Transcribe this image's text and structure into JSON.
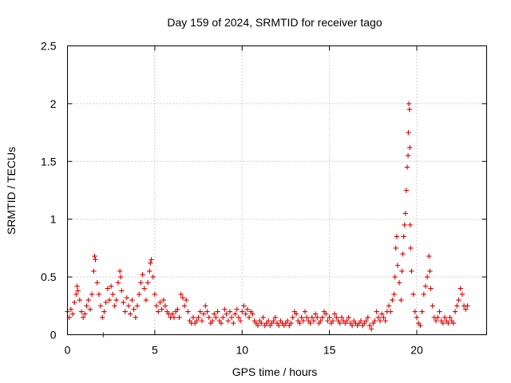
{
  "chart_data": {
    "type": "scatter",
    "title": "Day 159 of 2024, SRMTID for receiver tago",
    "xlabel": "GPS time / hours",
    "ylabel": "SRMTID / TECUs",
    "xlim": [
      0,
      24
    ],
    "ylim": [
      0,
      2.5
    ],
    "xticks": [
      0,
      5,
      10,
      15,
      20
    ],
    "xtick_labels": [
      "0",
      "5",
      "10",
      "15",
      "20"
    ],
    "yticks": [
      0,
      0.5,
      1,
      1.5,
      2,
      2.5
    ],
    "ytick_labels": [
      "0",
      "0.5",
      "1",
      "1.5",
      "2",
      "2.5"
    ],
    "grid": true,
    "marker": "plus",
    "color": "#e00000",
    "series": [
      {
        "name": "SRMTID",
        "points": [
          [
            0.0,
            0.2
          ],
          [
            0.1,
            0.15
          ],
          [
            0.2,
            0.22
          ],
          [
            0.3,
            0.18
          ],
          [
            0.4,
            0.28
          ],
          [
            0.5,
            0.35
          ],
          [
            0.55,
            0.42
          ],
          [
            0.6,
            0.38
          ],
          [
            0.7,
            0.3
          ],
          [
            0.8,
            0.2
          ],
          [
            0.9,
            0.15
          ],
          [
            1.0,
            0.18
          ],
          [
            1.1,
            0.25
          ],
          [
            1.2,
            0.3
          ],
          [
            1.3,
            0.22
          ],
          [
            1.4,
            0.35
          ],
          [
            1.5,
            0.55
          ],
          [
            1.55,
            0.68
          ],
          [
            1.6,
            0.65
          ],
          [
            1.7,
            0.45
          ],
          [
            1.8,
            0.35
          ],
          [
            1.9,
            0.25
          ],
          [
            2.0,
            0.15
          ],
          [
            2.05,
            0.0
          ],
          [
            2.1,
            0.2
          ],
          [
            2.2,
            0.28
          ],
          [
            2.3,
            0.4
          ],
          [
            2.4,
            0.3
          ],
          [
            2.5,
            0.42
          ],
          [
            2.6,
            0.35
          ],
          [
            2.7,
            0.25
          ],
          [
            2.8,
            0.3
          ],
          [
            2.9,
            0.45
          ],
          [
            3.0,
            0.55
          ],
          [
            3.05,
            0.5
          ],
          [
            3.1,
            0.38
          ],
          [
            3.2,
            0.28
          ],
          [
            3.3,
            0.2
          ],
          [
            3.4,
            0.32
          ],
          [
            3.5,
            0.25
          ],
          [
            3.6,
            0.18
          ],
          [
            3.7,
            0.3
          ],
          [
            3.8,
            0.22
          ],
          [
            3.9,
            0.15
          ],
          [
            4.0,
            0.25
          ],
          [
            4.1,
            0.35
          ],
          [
            4.2,
            0.45
          ],
          [
            4.3,
            0.52
          ],
          [
            4.4,
            0.4
          ],
          [
            4.5,
            0.3
          ],
          [
            4.6,
            0.45
          ],
          [
            4.7,
            0.55
          ],
          [
            4.75,
            0.62
          ],
          [
            4.8,
            0.65
          ],
          [
            4.9,
            0.5
          ],
          [
            5.0,
            0.35
          ],
          [
            5.1,
            0.25
          ],
          [
            5.2,
            0.2
          ],
          [
            5.3,
            0.28
          ],
          [
            5.4,
            0.22
          ],
          [
            5.5,
            0.3
          ],
          [
            5.6,
            0.25
          ],
          [
            5.7,
            0.2
          ],
          [
            5.8,
            0.18
          ],
          [
            5.9,
            0.15
          ],
          [
            6.0,
            0.18
          ],
          [
            6.1,
            0.15
          ],
          [
            6.2,
            0.2
          ],
          [
            6.3,
            0.22
          ],
          [
            6.4,
            0.15
          ],
          [
            6.5,
            0.35
          ],
          [
            6.6,
            0.32
          ],
          [
            6.7,
            0.25
          ],
          [
            6.8,
            0.3
          ],
          [
            6.9,
            0.2
          ],
          [
            7.0,
            0.12
          ],
          [
            7.1,
            0.1
          ],
          [
            7.2,
            0.15
          ],
          [
            7.3,
            0.1
          ],
          [
            7.4,
            0.12
          ],
          [
            7.5,
            0.15
          ],
          [
            7.6,
            0.2
          ],
          [
            7.7,
            0.12
          ],
          [
            7.8,
            0.18
          ],
          [
            7.9,
            0.25
          ],
          [
            8.0,
            0.2
          ],
          [
            8.1,
            0.15
          ],
          [
            8.2,
            0.1
          ],
          [
            8.3,
            0.12
          ],
          [
            8.4,
            0.18
          ],
          [
            8.5,
            0.15
          ],
          [
            8.6,
            0.2
          ],
          [
            8.7,
            0.12
          ],
          [
            8.8,
            0.1
          ],
          [
            8.9,
            0.15
          ],
          [
            9.0,
            0.22
          ],
          [
            9.1,
            0.18
          ],
          [
            9.2,
            0.12
          ],
          [
            9.3,
            0.2
          ],
          [
            9.4,
            0.15
          ],
          [
            9.5,
            0.1
          ],
          [
            9.6,
            0.18
          ],
          [
            9.7,
            0.22
          ],
          [
            9.8,
            0.15
          ],
          [
            9.9,
            0.12
          ],
          [
            10.0,
            0.2
          ],
          [
            10.1,
            0.25
          ],
          [
            10.2,
            0.18
          ],
          [
            10.3,
            0.22
          ],
          [
            10.4,
            0.15
          ],
          [
            10.5,
            0.2
          ],
          [
            10.6,
            0.18
          ],
          [
            10.7,
            0.12
          ],
          [
            10.8,
            0.1
          ],
          [
            10.9,
            0.08
          ],
          [
            11.0,
            0.12
          ],
          [
            11.1,
            0.1
          ],
          [
            11.2,
            0.15
          ],
          [
            11.3,
            0.08
          ],
          [
            11.4,
            0.1
          ],
          [
            11.5,
            0.12
          ],
          [
            11.6,
            0.08
          ],
          [
            11.7,
            0.1
          ],
          [
            11.8,
            0.12
          ],
          [
            11.9,
            0.15
          ],
          [
            12.0,
            0.1
          ],
          [
            12.1,
            0.08
          ],
          [
            12.2,
            0.12
          ],
          [
            12.3,
            0.1
          ],
          [
            12.4,
            0.08
          ],
          [
            12.5,
            0.1
          ],
          [
            12.6,
            0.12
          ],
          [
            12.7,
            0.08
          ],
          [
            12.8,
            0.1
          ],
          [
            12.9,
            0.15
          ],
          [
            13.0,
            0.2
          ],
          [
            13.1,
            0.18
          ],
          [
            13.2,
            0.12
          ],
          [
            13.3,
            0.1
          ],
          [
            13.4,
            0.15
          ],
          [
            13.5,
            0.12
          ],
          [
            13.6,
            0.2
          ],
          [
            13.7,
            0.15
          ],
          [
            13.8,
            0.12
          ],
          [
            13.9,
            0.1
          ],
          [
            14.0,
            0.15
          ],
          [
            14.1,
            0.12
          ],
          [
            14.2,
            0.18
          ],
          [
            14.3,
            0.15
          ],
          [
            14.4,
            0.1
          ],
          [
            14.5,
            0.12
          ],
          [
            14.6,
            0.15
          ],
          [
            14.7,
            0.2
          ],
          [
            14.8,
            0.18
          ],
          [
            14.9,
            0.12
          ],
          [
            15.0,
            0.15
          ],
          [
            15.1,
            0.1
          ],
          [
            15.2,
            0.12
          ],
          [
            15.3,
            0.18
          ],
          [
            15.4,
            0.15
          ],
          [
            15.5,
            0.12
          ],
          [
            15.6,
            0.1
          ],
          [
            15.7,
            0.15
          ],
          [
            15.8,
            0.12
          ],
          [
            15.9,
            0.1
          ],
          [
            16.0,
            0.12
          ],
          [
            16.1,
            0.15
          ],
          [
            16.2,
            0.1
          ],
          [
            16.3,
            0.08
          ],
          [
            16.4,
            0.12
          ],
          [
            16.5,
            0.1
          ],
          [
            16.6,
            0.08
          ],
          [
            16.7,
            0.1
          ],
          [
            16.8,
            0.12
          ],
          [
            16.9,
            0.08
          ],
          [
            17.0,
            0.1
          ],
          [
            17.1,
            0.12
          ],
          [
            17.2,
            0.15
          ],
          [
            17.3,
            0.08
          ],
          [
            17.4,
            0.05
          ],
          [
            17.5,
            0.1
          ],
          [
            17.6,
            0.12
          ],
          [
            17.7,
            0.2
          ],
          [
            17.8,
            0.15
          ],
          [
            17.9,
            0.12
          ],
          [
            18.0,
            0.18
          ],
          [
            18.1,
            0.15
          ],
          [
            18.2,
            0.12
          ],
          [
            18.3,
            0.2
          ],
          [
            18.4,
            0.25
          ],
          [
            18.5,
            0.2
          ],
          [
            18.6,
            0.3
          ],
          [
            18.7,
            0.35
          ],
          [
            18.75,
            0.5
          ],
          [
            18.8,
            0.75
          ],
          [
            18.85,
            0.85
          ],
          [
            18.9,
            0.6
          ],
          [
            19.0,
            0.45
          ],
          [
            19.1,
            0.3
          ],
          [
            19.15,
            0.55
          ],
          [
            19.2,
            0.7
          ],
          [
            19.25,
            0.85
          ],
          [
            19.3,
            0.95
          ],
          [
            19.35,
            1.05
          ],
          [
            19.4,
            1.25
          ],
          [
            19.45,
            1.45
          ],
          [
            19.5,
            1.55
          ],
          [
            19.52,
            1.75
          ],
          [
            19.55,
            2.0
          ],
          [
            19.58,
            1.95
          ],
          [
            19.6,
            1.62
          ],
          [
            19.62,
            0.95
          ],
          [
            19.65,
            0.75
          ],
          [
            19.7,
            0.55
          ],
          [
            19.8,
            0.35
          ],
          [
            19.9,
            0.2
          ],
          [
            20.0,
            0.15
          ],
          [
            20.1,
            0.1
          ],
          [
            20.2,
            0.08
          ],
          [
            20.3,
            0.2
          ],
          [
            20.4,
            0.35
          ],
          [
            20.5,
            0.42
          ],
          [
            20.6,
            0.5
          ],
          [
            20.7,
            0.68
          ],
          [
            20.75,
            0.55
          ],
          [
            20.8,
            0.4
          ],
          [
            20.9,
            0.25
          ],
          [
            21.0,
            0.15
          ],
          [
            21.1,
            0.12
          ],
          [
            21.2,
            0.15
          ],
          [
            21.3,
            0.2
          ],
          [
            21.4,
            0.12
          ],
          [
            21.5,
            0.1
          ],
          [
            21.6,
            0.15
          ],
          [
            21.7,
            0.12
          ],
          [
            21.8,
            0.1
          ],
          [
            21.9,
            0.15
          ],
          [
            22.0,
            0.12
          ],
          [
            22.1,
            0.1
          ],
          [
            22.2,
            0.2
          ],
          [
            22.3,
            0.25
          ],
          [
            22.4,
            0.3
          ],
          [
            22.5,
            0.4
          ],
          [
            22.6,
            0.35
          ],
          [
            22.7,
            0.25
          ],
          [
            22.8,
            0.22
          ],
          [
            22.9,
            0.25
          ]
        ]
      }
    ]
  }
}
